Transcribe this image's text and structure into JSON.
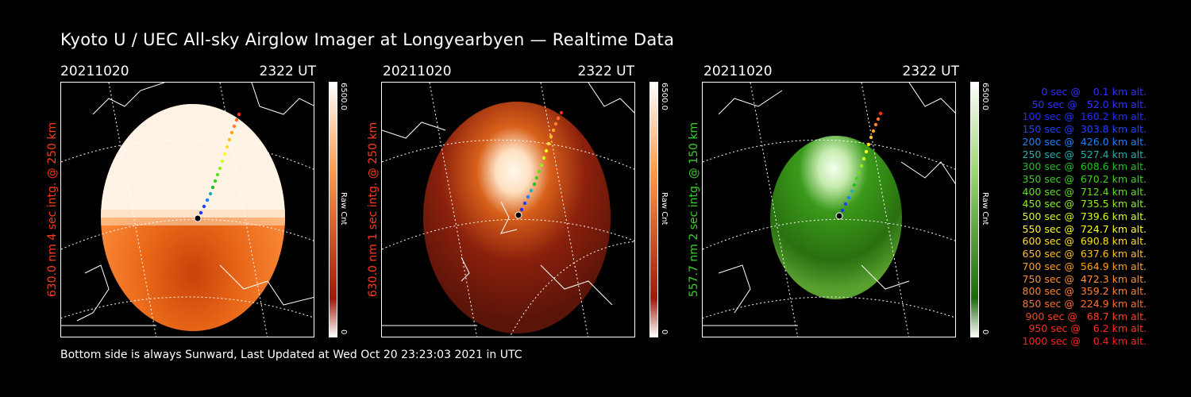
{
  "title": "Kyoto U / UEC All-sky Airglow Imager at Longyearbyen — Realtime Data",
  "footer": "Bottom side is always Sunward, Last Updated at Wed Oct 20 23:23:03 2021 in UTC",
  "panels": [
    {
      "date": "20211020",
      "time": "2322 UT",
      "side_label": "630.0 nm 4 sec intg. @ 250 km",
      "label_color": "#ff3a1a",
      "cbar_max": "6500.0",
      "cbar_min": "0",
      "cbar_unit": "Raw Cnt",
      "theme": "orange-bright"
    },
    {
      "date": "20211020",
      "time": "2322 UT",
      "side_label": "630.0 nm 1 sec intg. @ 250 km",
      "label_color": "#ff3a1a",
      "cbar_max": "6500.0",
      "cbar_min": "0",
      "cbar_unit": "Raw Cnt",
      "theme": "orange-dark"
    },
    {
      "date": "20211020",
      "time": "2322 UT",
      "side_label": "557.7 nm 2 sec intg. @ 150 km",
      "label_color": "#3ad12a",
      "cbar_max": "6500.0",
      "cbar_min": "0",
      "cbar_unit": "Raw Cnt",
      "theme": "green"
    }
  ],
  "legend": [
    {
      "text": "   0 sec @    0.1 km alt.",
      "color": "#3030ff"
    },
    {
      "text": "  50 sec @   52.0 km alt.",
      "color": "#3030ff"
    },
    {
      "text": " 100 sec @  160.2 km alt.",
      "color": "#2030ff"
    },
    {
      "text": " 150 sec @  303.8 km alt.",
      "color": "#2040ff"
    },
    {
      "text": " 200 sec @  426.0 km alt.",
      "color": "#2080ff"
    },
    {
      "text": " 250 sec @  527.4 km alt.",
      "color": "#20b0b0"
    },
    {
      "text": " 300 sec @  608.6 km alt.",
      "color": "#20c020"
    },
    {
      "text": " 350 sec @  670.2 km alt.",
      "color": "#40d020"
    },
    {
      "text": " 400 sec @  712.4 km alt.",
      "color": "#60e020"
    },
    {
      "text": " 450 sec @  735.5 km alt.",
      "color": "#90f020"
    },
    {
      "text": " 500 sec @  739.6 km alt.",
      "color": "#d0ff20"
    },
    {
      "text": " 550 sec @  724.7 km alt.",
      "color": "#ffff20"
    },
    {
      "text": " 600 sec @  690.8 km alt.",
      "color": "#ffe020"
    },
    {
      "text": " 650 sec @  637.6 km alt.",
      "color": "#ffc020"
    },
    {
      "text": " 700 sec @  564.9 km alt.",
      "color": "#ffa020"
    },
    {
      "text": " 750 sec @  472.3 km alt.",
      "color": "#ff9030"
    },
    {
      "text": " 800 sec @  359.2 km alt.",
      "color": "#ff8030"
    },
    {
      "text": " 850 sec @  224.9 km alt.",
      "color": "#ff7030"
    },
    {
      "text": " 900 sec @   68.7 km alt.",
      "color": "#ff4020"
    },
    {
      "text": " 950 sec @    6.2 km alt.",
      "color": "#ff3020"
    },
    {
      "text": "1000 sec @    0.4 km alt.",
      "color": "#ff2020"
    }
  ]
}
